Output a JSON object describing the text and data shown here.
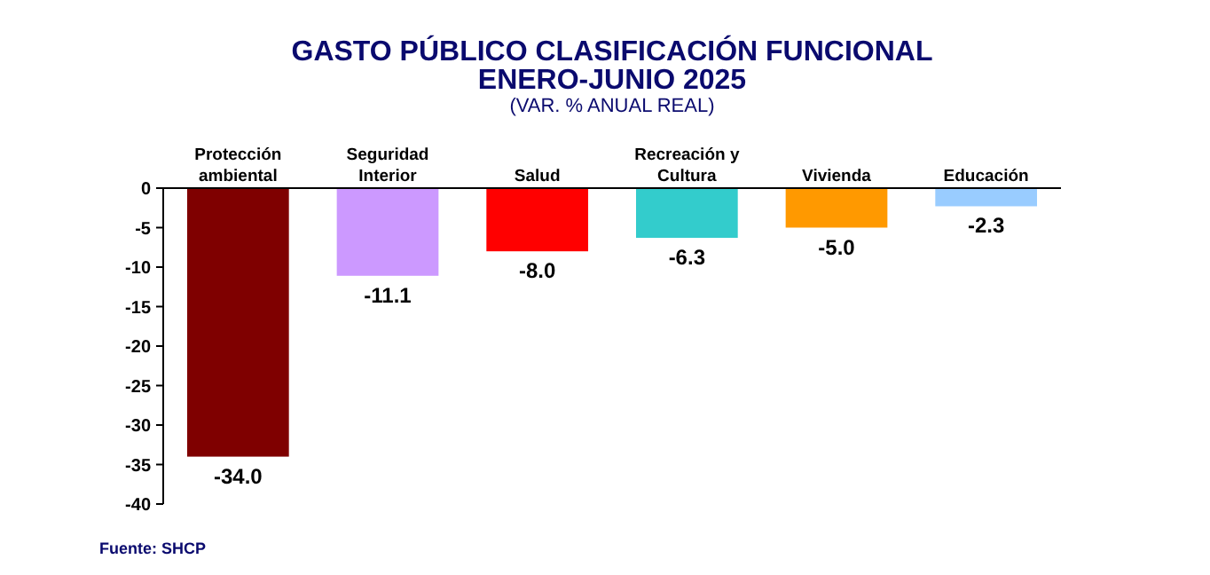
{
  "chart_data": {
    "type": "bar",
    "title": "GASTO PÚBLICO CLASIFICACIÓN FUNCIONAL\nENERO-JUNIO 2025",
    "subtitle": "(VAR. % ANUAL REAL)",
    "categories": [
      "Protección ambiental",
      "Seguridad Interior",
      "Salud",
      "Recreación y Cultura",
      "Vivienda",
      "Educación"
    ],
    "values": [
      -34.0,
      -11.1,
      -8.0,
      -6.3,
      -5.0,
      -2.3
    ],
    "colors": [
      "#7f0000",
      "#cc99ff",
      "#ff0000",
      "#33cccc",
      "#ff9900",
      "#99ccff"
    ],
    "value_labels": [
      "-34.0",
      "-11.1",
      "-8.0",
      "-6.3",
      "-5.0",
      "-2.3"
    ],
    "ylim": [
      -40,
      0
    ],
    "yticks": [
      0,
      -5,
      -10,
      -15,
      -20,
      -25,
      -30,
      -35,
      -40
    ],
    "annotations": [
      "Fuente: SHCP"
    ]
  }
}
